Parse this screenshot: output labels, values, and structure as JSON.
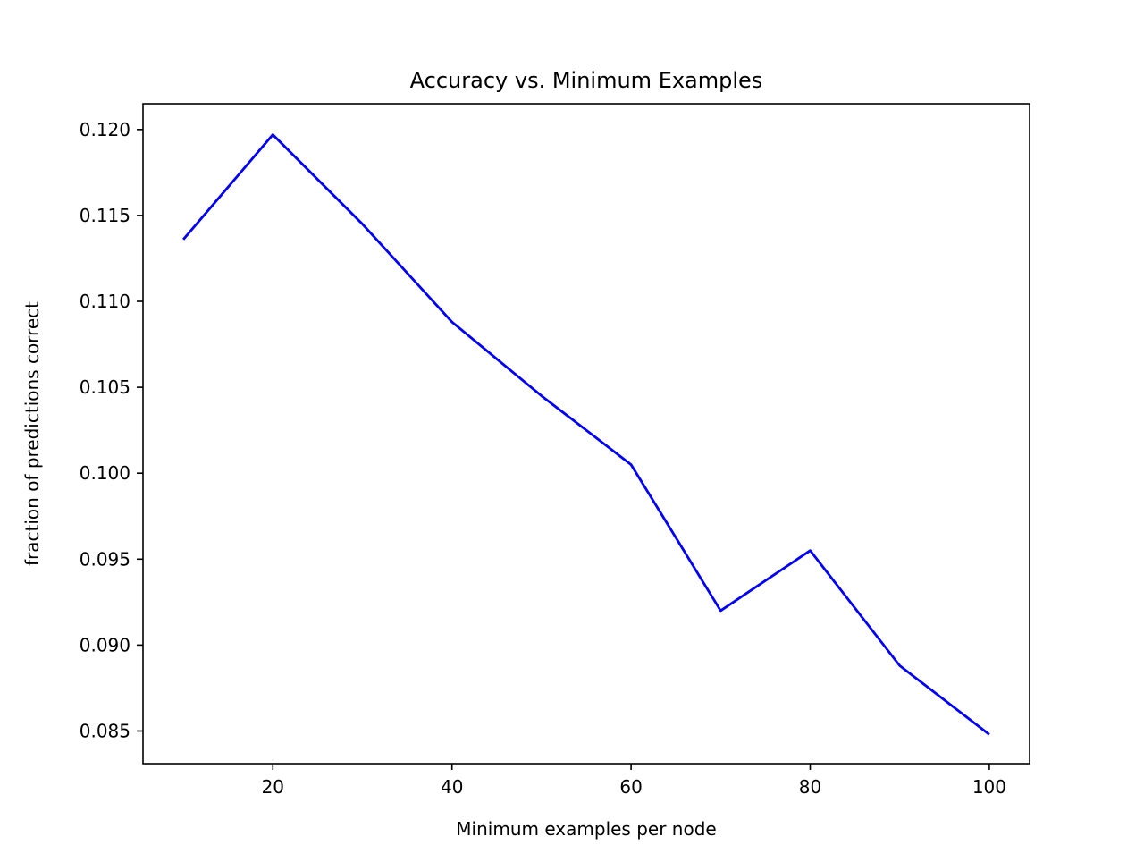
{
  "chart_data": {
    "type": "line",
    "title": "Accuracy vs. Minimum Examples",
    "xlabel": "Minimum examples per node",
    "ylabel": "fraction of predictions correct",
    "x": [
      10,
      20,
      30,
      40,
      50,
      60,
      70,
      80,
      90,
      100
    ],
    "series": [
      {
        "values": [
          0.1136,
          0.1197,
          0.1145,
          0.1088,
          0.1045,
          0.1005,
          0.092,
          0.0955,
          0.0888,
          0.0848
        ],
        "color": "#0000ff"
      }
    ],
    "xlim": [
      5.5,
      104.5
    ],
    "ylim": [
      0.0831,
      0.1215
    ],
    "xticks": [
      20,
      40,
      60,
      80,
      100
    ],
    "xtick_labels": [
      "20",
      "40",
      "60",
      "80",
      "100"
    ],
    "yticks": [
      0.085,
      0.09,
      0.095,
      0.1,
      0.105,
      0.11,
      0.115,
      0.12
    ],
    "ytick_labels": [
      "0.085",
      "0.090",
      "0.095",
      "0.100",
      "0.105",
      "0.110",
      "0.115",
      "0.120"
    ],
    "grid": false,
    "legend": "none"
  }
}
